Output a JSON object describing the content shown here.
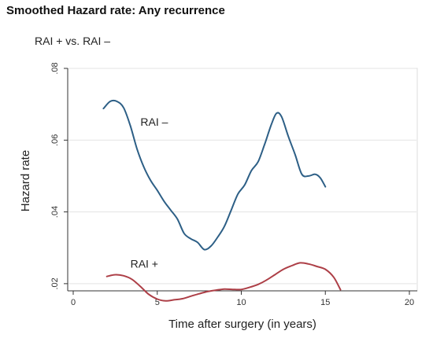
{
  "chart_data": {
    "type": "line",
    "title": "Smoothed Hazard rate: Any recurrence",
    "subtitle": "RAI + vs. RAI –",
    "xlabel": "Time after surgery (in years)",
    "ylabel": "Hazard  rate",
    "xlim": [
      0,
      20
    ],
    "ylim": [
      0.018,
      0.08
    ],
    "xticks": [
      0,
      5,
      10,
      15,
      20
    ],
    "xtick_labels": [
      "0",
      "5",
      "10",
      "15",
      "20"
    ],
    "yticks": [
      0.02,
      0.04,
      0.06,
      0.08
    ],
    "ytick_labels": [
      ".02",
      ".04",
      ".06",
      ".08"
    ],
    "grid": "horizontal",
    "series": [
      {
        "name": "RAI –",
        "color": "#2d5f86",
        "label_at": {
          "x": 4.0,
          "y": 0.064
        },
        "points": [
          [
            1.8,
            0.0688
          ],
          [
            2.2,
            0.0708
          ],
          [
            2.6,
            0.0708
          ],
          [
            3.0,
            0.069
          ],
          [
            3.4,
            0.064
          ],
          [
            3.8,
            0.0575
          ],
          [
            4.2,
            0.0525
          ],
          [
            4.6,
            0.0488
          ],
          [
            5.0,
            0.046
          ],
          [
            5.4,
            0.043
          ],
          [
            5.8,
            0.0405
          ],
          [
            6.2,
            0.038
          ],
          [
            6.6,
            0.034
          ],
          [
            7.0,
            0.0325
          ],
          [
            7.4,
            0.0315
          ],
          [
            7.8,
            0.0295
          ],
          [
            8.2,
            0.0305
          ],
          [
            8.6,
            0.033
          ],
          [
            9.0,
            0.036
          ],
          [
            9.4,
            0.0405
          ],
          [
            9.8,
            0.045
          ],
          [
            10.2,
            0.0475
          ],
          [
            10.6,
            0.0515
          ],
          [
            11.0,
            0.054
          ],
          [
            11.4,
            0.059
          ],
          [
            11.8,
            0.0645
          ],
          [
            12.1,
            0.0675
          ],
          [
            12.4,
            0.0665
          ],
          [
            12.8,
            0.061
          ],
          [
            13.2,
            0.056
          ],
          [
            13.6,
            0.0505
          ],
          [
            14.0,
            0.05
          ],
          [
            14.4,
            0.0505
          ],
          [
            14.7,
            0.0495
          ],
          [
            15.0,
            0.047
          ]
        ]
      },
      {
        "name": "RAI +",
        "color": "#ad3f47",
        "label_at": {
          "x": 3.4,
          "y": 0.0245
        },
        "points": [
          [
            2.0,
            0.022
          ],
          [
            2.5,
            0.0225
          ],
          [
            3.0,
            0.0222
          ],
          [
            3.5,
            0.0212
          ],
          [
            4.0,
            0.0192
          ],
          [
            4.5,
            0.017
          ],
          [
            5.0,
            0.0157
          ],
          [
            5.5,
            0.0152
          ],
          [
            6.0,
            0.0155
          ],
          [
            6.5,
            0.0158
          ],
          [
            7.0,
            0.0165
          ],
          [
            7.5,
            0.0172
          ],
          [
            8.0,
            0.0178
          ],
          [
            8.5,
            0.0182
          ],
          [
            9.0,
            0.0185
          ],
          [
            9.5,
            0.0184
          ],
          [
            10.0,
            0.0184
          ],
          [
            10.5,
            0.019
          ],
          [
            11.0,
            0.0198
          ],
          [
            11.5,
            0.021
          ],
          [
            12.0,
            0.0225
          ],
          [
            12.5,
            0.024
          ],
          [
            13.0,
            0.025
          ],
          [
            13.5,
            0.0258
          ],
          [
            14.0,
            0.0255
          ],
          [
            14.5,
            0.0248
          ],
          [
            15.0,
            0.024
          ],
          [
            15.5,
            0.0218
          ],
          [
            15.9,
            0.0183
          ]
        ]
      }
    ]
  }
}
